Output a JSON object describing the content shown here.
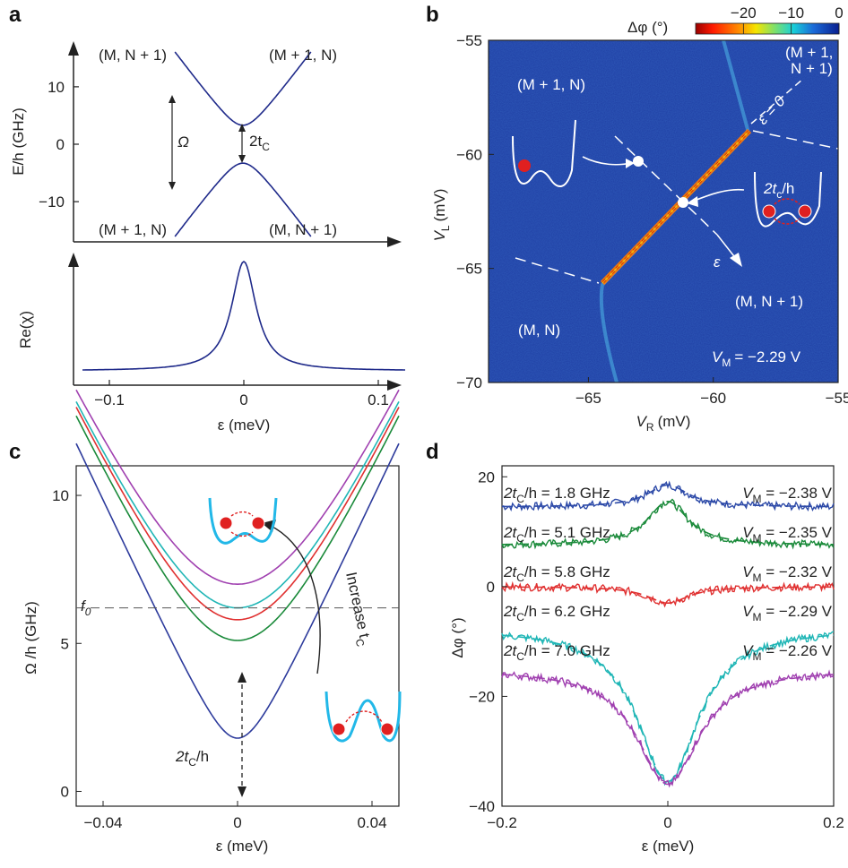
{
  "chart_data": [
    {
      "panel": "a",
      "type": "line",
      "ylabel": "E/h (GHz)",
      "xlabel": "ε (meV)",
      "ylim": [
        -17,
        17
      ],
      "xlim": [
        -0.15,
        0.15
      ],
      "yticks": [
        "10",
        "0",
        "−10"
      ],
      "state_labels": {
        "tl": "(M, N + 1)",
        "tr": "(M + 1, N)",
        "bl": "(M + 1, N)",
        "br": "(M, N + 1)"
      },
      "annotations": {
        "omega": "Ω",
        "gap": "2t",
        "gap_sub": "C"
      },
      "series": [
        {
          "values_fn": "sqrt((eps*242)^2 + 3.3^2)",
          "color": "#1f2a8a"
        },
        {
          "values_fn": "-sqrt((eps*242)^2 + 3.3^2)",
          "color": "#1f2a8a"
        }
      ]
    },
    {
      "panel": "a-lower",
      "type": "line",
      "ylabel": "Re(χ)",
      "xlabel": "ε (meV)",
      "xticks": [
        "−0.1",
        "0",
        "0.1"
      ],
      "xtick_values": [
        -0.1,
        0,
        0.1
      ],
      "color": "#1f2a8a"
    },
    {
      "panel": "b",
      "type": "heatmap",
      "xlabel": "V",
      "xlabel_sub": "R",
      "xlabel_unit": "(mV)",
      "ylabel": "V",
      "ylabel_sub": "L",
      "ylabel_unit": "(mV)",
      "xlim": [
        -69,
        -55
      ],
      "ylim": [
        -70,
        -55
      ],
      "xticks": [
        "−65",
        "−60",
        "−55"
      ],
      "xtick_values": [
        -65,
        -60,
        -55
      ],
      "yticks": [
        "−55",
        "−60",
        "−65",
        "−70"
      ],
      "ytick_values": [
        -55,
        -60,
        -65,
        -70
      ],
      "colorbar": {
        "label": "Δφ (°)",
        "ticks": [
          "−20",
          "−10",
          "0"
        ],
        "range": [
          -30,
          0
        ]
      },
      "region_labels": {
        "mp1_n": "(M + 1, N)",
        "m_n": "(M, N)",
        "m_np1": "(M, N + 1)",
        "mp1_np1_a": "(M + 1,",
        "mp1_np1_b": "N + 1)"
      },
      "annotations": {
        "eps_zero": "ε = 0",
        "eps": "ε",
        "tunnel": "2t",
        "tunnel_sub": "c",
        "tunnel_suffix": "/h",
        "vm": "V",
        "vm_sub": "M",
        "vm_val": "= −2.29 V"
      }
    },
    {
      "panel": "c",
      "type": "line",
      "ylabel": "Ω /h (GHz)",
      "xlabel": "ε (meV)",
      "xlim": [
        -0.048,
        0.048
      ],
      "ylim": [
        -0.5,
        11
      ],
      "xticks": [
        "−0.04",
        "0",
        "0.04"
      ],
      "xtick_values": [
        -0.04,
        0,
        0.04
      ],
      "yticks": [
        "10",
        "5",
        "0"
      ],
      "ytick_values": [
        10,
        5,
        0
      ],
      "f0_label": "f",
      "f0_sub": "0",
      "f0": 6.2,
      "arrow_label": "Increase t",
      "arrow_label_sub": "C",
      "gap_label": "2t",
      "gap_label_sub": "C",
      "gap_label_suffix": "/h",
      "series": [
        {
          "gap": 1.8,
          "color": "#2d3b9c"
        },
        {
          "gap": 5.1,
          "color": "#1a8a3a"
        },
        {
          "gap": 5.8,
          "color": "#e03030"
        },
        {
          "gap": 6.2,
          "color": "#20b6b6"
        },
        {
          "gap": 7.0,
          "color": "#a040b0"
        }
      ]
    },
    {
      "panel": "d",
      "type": "line",
      "ylabel": "Δφ (°)",
      "xlabel": "ε (meV)",
      "xlim": [
        -0.2,
        0.2
      ],
      "ylim": [
        -40,
        22
      ],
      "xticks": [
        "−0.2",
        "0",
        "0.2"
      ],
      "xtick_values": [
        -0.2,
        0,
        0.2
      ],
      "yticks": [
        "20",
        "0",
        "−20",
        "−40"
      ],
      "ytick_values": [
        20,
        0,
        -20,
        -40
      ],
      "series": [
        {
          "left": "2t",
          "left_sub": "C",
          "left_val": "/h = 1.8 GHz",
          "right": "V",
          "right_sub": "M",
          "right_val": " = −2.38 V",
          "color": "#2d4aa8",
          "baseline": 14.5,
          "amp": 4
        },
        {
          "left": "2t",
          "left_sub": "C",
          "left_val": "/h = 5.1 GHz",
          "right": "V",
          "right_sub": "M",
          "right_val": " = −2.35 V",
          "color": "#1a8a3a",
          "baseline": 7.5,
          "amp": 8
        },
        {
          "left": "2t",
          "left_sub": "C",
          "left_val": "/h = 5.8 GHz",
          "right": "V",
          "right_sub": "M",
          "right_val": " = −2.32 V",
          "color": "#e03030",
          "baseline": 0,
          "amp": -3
        },
        {
          "left": "2t",
          "left_sub": "C",
          "left_val": "/h = 6.2 GHz",
          "right": "V",
          "right_sub": "M",
          "right_val": " = −2.29 V",
          "color": "#20b6b6",
          "baseline": -7.5,
          "amp": -28
        },
        {
          "left": "2t",
          "left_sub": "C",
          "left_val": "/h = 7.0 GHz",
          "right": "V",
          "right_sub": "M",
          "right_val": " = −2.26 V",
          "color": "#a040b0",
          "baseline": -15,
          "amp": -21
        }
      ]
    }
  ],
  "panels": {
    "a": "a",
    "b": "b",
    "c": "c",
    "d": "d"
  }
}
